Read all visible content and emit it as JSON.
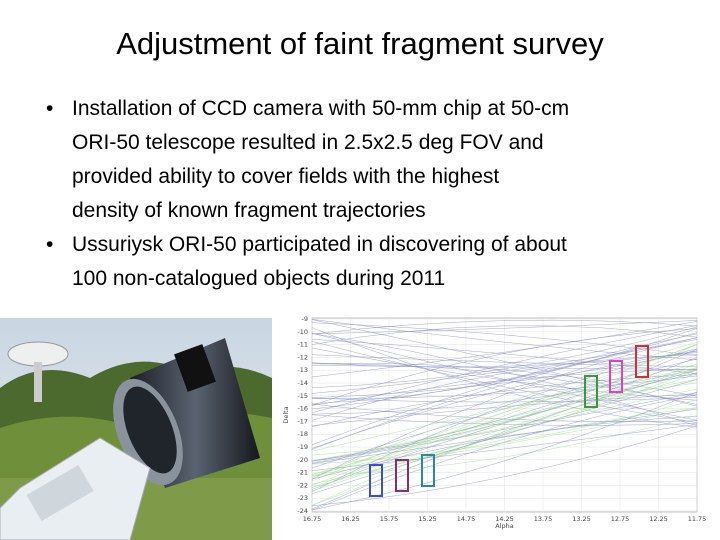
{
  "title": "Adjustment of faint fragment survey",
  "bullets": [
    [
      "Installation of CCD camera with 50-mm chip at 50-cm",
      "ORI-50 telescope resulted in 2.5x2.5 deg FOV and",
      "provided ability to cover fields with the highest",
      "density of known fragment  trajectories"
    ],
    [
      "Ussuriysk ORI-50 participated in discovering of about",
      "100 non-catalogued objects during 2011"
    ]
  ],
  "plot": {
    "y_labels": [
      "-9",
      "-10",
      "-11",
      "-12",
      "-13",
      "-14",
      "-15",
      "-16",
      "-17",
      "-18",
      "-19",
      "-20",
      "-21",
      "-22",
      "-23",
      "-24"
    ],
    "x_labels": [
      "16.75",
      "16.25",
      "15.75",
      "15.25",
      "14.75",
      "14.25",
      "13.75",
      "13.25",
      "12.75",
      "12.25",
      "11.75"
    ],
    "y_title": "Delta",
    "x_title": "Alpha"
  }
}
